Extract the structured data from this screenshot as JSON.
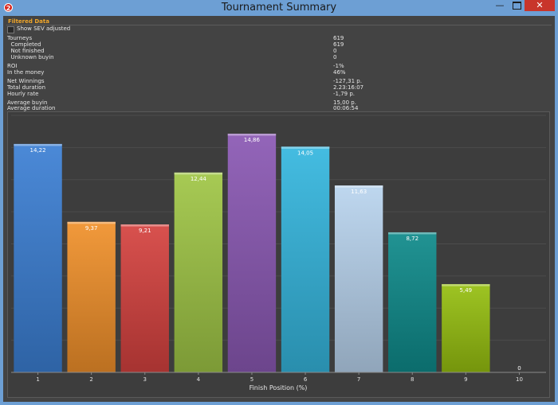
{
  "window": {
    "title": "Tournament Summary",
    "app_icon_label": "2",
    "minimize_symbol": "—",
    "close_symbol": "✕"
  },
  "filter": {
    "group_label": "Filtered Data",
    "show_sev_label": "Show SEV adjusted",
    "show_sev_checked": false
  },
  "stats": [
    {
      "label": "Tourneys",
      "value": "619"
    },
    {
      "label": "  Completed",
      "value": "619"
    },
    {
      "label": "  Not finished",
      "value": "0"
    },
    {
      "label": "  Unknown buyin",
      "value": "0"
    },
    {
      "label": "ROI",
      "value": "-1%"
    },
    {
      "label": "In the money",
      "value": "46%"
    },
    {
      "label": "Net Winnings",
      "value": "-127,31 р."
    },
    {
      "label": "Total duration",
      "value": "2.23:16:07"
    },
    {
      "label": "Hourly rate",
      "value": "-1,79 р."
    },
    {
      "label": "Average buyin",
      "value": "15,00 р."
    },
    {
      "label": "Average duration",
      "value": "00:06:54"
    }
  ],
  "chart_data": {
    "type": "bar",
    "xlabel": "Finish Position (%)",
    "ylabel": "",
    "categories": [
      "1",
      "2",
      "3",
      "4",
      "5",
      "6",
      "7",
      "8",
      "9",
      "10"
    ],
    "values": [
      14.22,
      9.37,
      9.21,
      12.44,
      14.86,
      14.05,
      11.63,
      8.72,
      5.49,
      0
    ],
    "value_labels": [
      "14,22",
      "9,37",
      "9,21",
      "12,44",
      "14,86",
      "14,05",
      "11,63",
      "8,72",
      "5,49",
      "0"
    ],
    "ylim": [
      0,
      16
    ],
    "grid": true,
    "colors": [
      "#3b7fd4",
      "#f0902a",
      "#d5423f",
      "#9fc545",
      "#8a58b3",
      "#34b6de",
      "#b8d4ee",
      "#0e8a8a",
      "#96bf10",
      "#888888"
    ]
  }
}
